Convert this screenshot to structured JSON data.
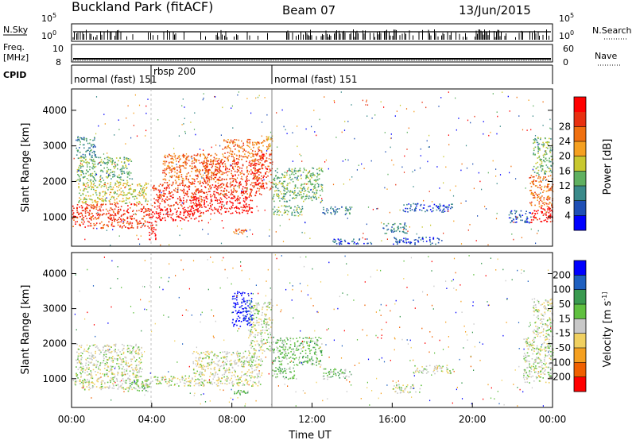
{
  "header": {
    "station": "Buckland Park (fitACF)",
    "beam": "Beam 07",
    "date": "13/Jun/2015"
  },
  "summary_panels": {
    "nsky": {
      "label": "N.Sky",
      "left_ticks": [
        "10^5",
        "10^0"
      ],
      "right_label": "N.Search",
      "right_ticks": [
        "10^5",
        "10^0"
      ]
    },
    "freq": {
      "label_top": "Freq.",
      "label_unit": "[MHz]",
      "left_ticks": [
        "10",
        "8"
      ],
      "right_label": "Nave",
      "right_ticks": [
        "60",
        "0"
      ]
    },
    "cpid": {
      "label": "CPID",
      "segments": [
        {
          "text": "normal (fast) 151",
          "start_hour": 0.0,
          "end_hour": 4.0
        },
        {
          "text": "rbsp 200",
          "start_hour": 4.0,
          "end_hour": 10.0
        },
        {
          "text": "normal (fast) 151",
          "start_hour": 10.0,
          "end_hour": 24.0
        }
      ]
    }
  },
  "chart_data": [
    {
      "type": "heatmap",
      "name": "power",
      "ylabel": "Slant Range [km]",
      "ylim": [
        180,
        4600
      ],
      "xlim": [
        0,
        24
      ],
      "yticks": [
        {
          "value": 1000,
          "label": "1000"
        },
        {
          "value": 2000,
          "label": "2000"
        },
        {
          "value": 3000,
          "label": "3000"
        },
        {
          "value": 4000,
          "label": "4000"
        }
      ],
      "colorbar": {
        "label": "Power [dB]",
        "ticks": [
          "4",
          "8",
          "12",
          "16",
          "20",
          "24",
          "28"
        ],
        "colors": [
          "#0000ff",
          "#1f4fb5",
          "#3a8a8a",
          "#5fb060",
          "#c8c830",
          "#f5a020",
          "#f07010",
          "#e83010",
          "#ff0000"
        ]
      },
      "regions": [
        {
          "h0": 0.0,
          "h1": 4.0,
          "r0": 700,
          "r1": 1400,
          "c": 7
        },
        {
          "h0": 0.3,
          "h1": 3.8,
          "r0": 1400,
          "r1": 2000,
          "c": 4
        },
        {
          "h0": 0.2,
          "h1": 3.0,
          "r0": 2000,
          "r1": 2700,
          "c": 3
        },
        {
          "h0": 0.2,
          "h1": 1.2,
          "r0": 2700,
          "r1": 3300,
          "c": 2
        },
        {
          "h0": 4.0,
          "h1": 6.5,
          "r0": 900,
          "r1": 1300,
          "c": 8
        },
        {
          "h0": 4.0,
          "h1": 6.5,
          "r0": 1300,
          "r1": 2000,
          "c": 7
        },
        {
          "h0": 4.5,
          "h1": 7.5,
          "r0": 2000,
          "r1": 2800,
          "c": 6
        },
        {
          "h0": 6.0,
          "h1": 9.0,
          "r0": 1100,
          "r1": 1600,
          "c": 8
        },
        {
          "h0": 6.5,
          "h1": 9.5,
          "r0": 1600,
          "r1": 2600,
          "c": 7
        },
        {
          "h0": 7.5,
          "h1": 9.5,
          "r0": 2600,
          "r1": 3200,
          "c": 6
        },
        {
          "h0": 9.0,
          "h1": 10.0,
          "r0": 1800,
          "r1": 2800,
          "c": 7
        },
        {
          "h0": 9.5,
          "h1": 10.0,
          "r0": 2800,
          "r1": 3300,
          "c": 5
        },
        {
          "h0": 3.8,
          "h1": 4.2,
          "r0": 380,
          "r1": 900,
          "c": 8
        },
        {
          "h0": 8.0,
          "h1": 8.8,
          "r0": 550,
          "r1": 680,
          "c": 6
        },
        {
          "h0": 10.0,
          "h1": 11.5,
          "r0": 1050,
          "r1": 1350,
          "c": 3
        },
        {
          "h0": 10.0,
          "h1": 12.5,
          "r0": 1450,
          "r1": 2400,
          "c": 3
        },
        {
          "h0": 12.5,
          "h1": 14.0,
          "r0": 1050,
          "r1": 1300,
          "c": 2
        },
        {
          "h0": 15.5,
          "h1": 16.8,
          "r0": 550,
          "r1": 850,
          "c": 2
        },
        {
          "h0": 16.5,
          "h1": 19.0,
          "r0": 1150,
          "r1": 1400,
          "c": 1
        },
        {
          "h0": 16.0,
          "h1": 18.5,
          "r0": 250,
          "r1": 450,
          "c": 1
        },
        {
          "h0": 13.0,
          "h1": 15.0,
          "r0": 250,
          "r1": 400,
          "c": 1
        },
        {
          "h0": 21.8,
          "h1": 23.0,
          "r0": 850,
          "r1": 1200,
          "c": 1
        },
        {
          "h0": 22.8,
          "h1": 24.0,
          "r0": 850,
          "r1": 1300,
          "c": 8
        },
        {
          "h0": 22.8,
          "h1": 24.0,
          "r0": 1300,
          "r1": 2200,
          "c": 6
        },
        {
          "h0": 23.0,
          "h1": 24.0,
          "r0": 2200,
          "r1": 3300,
          "c": 3
        }
      ]
    },
    {
      "type": "heatmap",
      "name": "velocity",
      "ylabel": "Slant Range [km]",
      "xlabel": "Time UT",
      "ylim": [
        180,
        4600
      ],
      "xlim": [
        0,
        24
      ],
      "yticks": [
        {
          "value": 1000,
          "label": "1000"
        },
        {
          "value": 2000,
          "label": "2000"
        },
        {
          "value": 3000,
          "label": "3000"
        },
        {
          "value": 4000,
          "label": "4000"
        }
      ],
      "xticks": [
        {
          "value": 0,
          "label": "00:00"
        },
        {
          "value": 4,
          "label": "04:00"
        },
        {
          "value": 8,
          "label": "08:00"
        },
        {
          "value": 12,
          "label": "12:00"
        },
        {
          "value": 16,
          "label": "16:00"
        },
        {
          "value": 20,
          "label": "20:00"
        },
        {
          "value": 24,
          "label": "00:00"
        }
      ],
      "colorbar": {
        "label": "Velocity [m s^-1]",
        "ticks": [
          "-200",
          "-100",
          "-50",
          "-15",
          "15",
          "50",
          "100",
          "200"
        ],
        "colors": [
          "#ff0000",
          "#f06000",
          "#f5a020",
          "#f0d060",
          "#c8c8c8",
          "#60c040",
          "#3a9a50",
          "#1f60c0",
          "#0000ff"
        ]
      },
      "regions": [
        {
          "h0": 0.0,
          "h1": 4.0,
          "r0": 700,
          "r1": 1000,
          "c": 4
        },
        {
          "h0": 0.2,
          "h1": 3.5,
          "r0": 1000,
          "r1": 2000,
          "c": 4
        },
        {
          "h0": 2.8,
          "h1": 3.8,
          "r0": 650,
          "r1": 1000,
          "c": 5
        },
        {
          "h0": 4.0,
          "h1": 9.5,
          "r0": 800,
          "r1": 1100,
          "c": 4
        },
        {
          "h0": 6.0,
          "h1": 9.5,
          "r0": 1100,
          "r1": 1800,
          "c": 4
        },
        {
          "h0": 8.8,
          "h1": 10.0,
          "r0": 1800,
          "r1": 3200,
          "c": 4
        },
        {
          "h0": 8.0,
          "h1": 9.0,
          "r0": 2500,
          "r1": 3500,
          "c": 8
        },
        {
          "h0": 8.0,
          "h1": 8.8,
          "r0": 580,
          "r1": 700,
          "c": 5
        },
        {
          "h0": 10.0,
          "h1": 11.2,
          "r0": 1000,
          "r1": 1350,
          "c": 5
        },
        {
          "h0": 10.0,
          "h1": 12.5,
          "r0": 1400,
          "r1": 2200,
          "c": 5
        },
        {
          "h0": 12.5,
          "h1": 14.0,
          "r0": 1000,
          "r1": 1300,
          "c": 5
        },
        {
          "h0": 16.0,
          "h1": 17.5,
          "r0": 600,
          "r1": 850,
          "c": 4
        },
        {
          "h0": 17.0,
          "h1": 19.0,
          "r0": 1150,
          "r1": 1400,
          "c": 4
        },
        {
          "h0": 22.5,
          "h1": 24.0,
          "r0": 900,
          "r1": 2200,
          "c": 4
        },
        {
          "h0": 23.0,
          "h1": 24.0,
          "r0": 2200,
          "r1": 3300,
          "c": 4
        }
      ]
    }
  ]
}
